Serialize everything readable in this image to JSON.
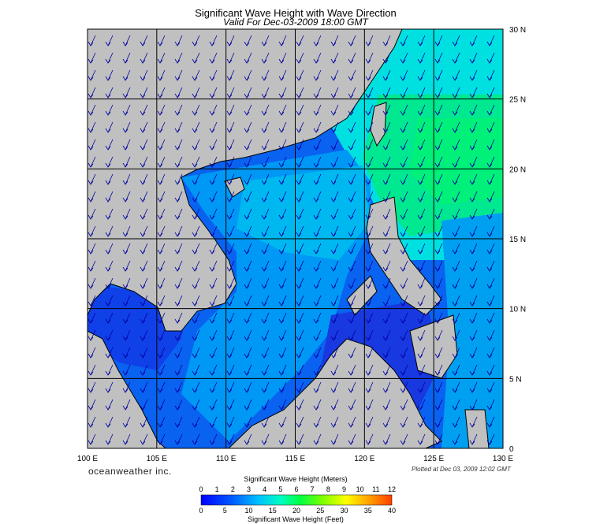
{
  "title": "Significant Wave Height with Wave Direction",
  "subtitle": "Valid For Dec-03-2009 18:00 GMT",
  "brand": "oceanweather inc.",
  "plotted": "Plotted at Dec 03, 2009 12:02 GMT",
  "map": {
    "lon_range": [
      100,
      130
    ],
    "lat_range": [
      0,
      30
    ],
    "lon_labels": [
      "100 E",
      "105 E",
      "110 E",
      "115 E",
      "120 E",
      "125 E",
      "130 E"
    ],
    "lat_labels": [
      "0",
      "5 N",
      "10 N",
      "15 N",
      "20 N",
      "25 N",
      "30 N"
    ],
    "land_color": "#c0c0c0",
    "grid_color": "#000000",
    "arrow_color": "#0000a0"
  },
  "legend": {
    "meters_title": "Significant Wave Height (Meters)",
    "feet_title": "Significant Wave Height (Feet)",
    "meters_ticks": [
      "0",
      "1",
      "2",
      "3",
      "4",
      "5",
      "6",
      "7",
      "8",
      "9",
      "10",
      "11",
      "12"
    ],
    "feet_ticks": [
      "0",
      "5",
      "10",
      "15",
      "20",
      "25",
      "30",
      "35",
      "40"
    ],
    "colors": [
      "#0000ff",
      "#0060ff",
      "#00c0ff",
      "#00ffc0",
      "#00ff40",
      "#80ff00",
      "#ffff00",
      "#ffa000",
      "#ff4000"
    ]
  }
}
